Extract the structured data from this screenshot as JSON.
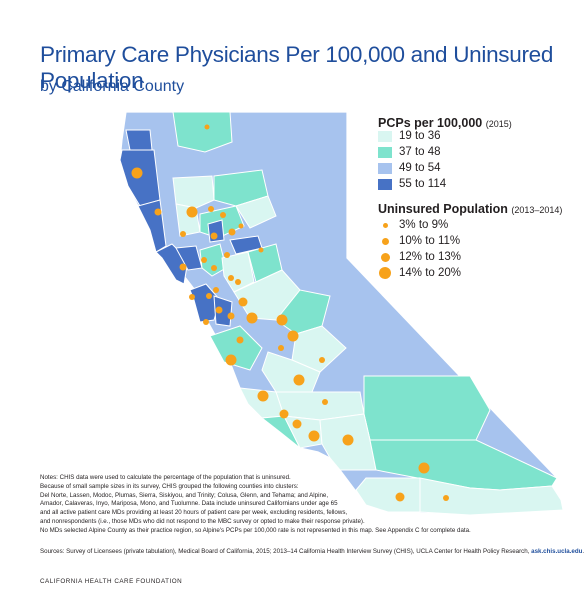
{
  "title": "Primary Care Physicians Per 100,000 and Uninsured Population",
  "subtitle": "by California County",
  "colors": {
    "level1": "#d9f6f1",
    "level2": "#7ee3cd",
    "level3": "#a7c3ee",
    "level4": "#4772c5",
    "dot": "#f7a21b",
    "title": "#1f4e9c"
  },
  "legend_pcp": {
    "title": "PCPs per 100,000",
    "year": "(2015)",
    "items": [
      {
        "label": "19 to 36",
        "color": "#d9f6f1"
      },
      {
        "label": "37 to 48",
        "color": "#7ee3cd"
      },
      {
        "label": "49 to 54",
        "color": "#a7c3ee"
      },
      {
        "label": "55 to 114",
        "color": "#4772c5"
      }
    ]
  },
  "legend_uninsured": {
    "title": "Uninsured Population",
    "year": "(2013–2014)",
    "items": [
      {
        "label": "3% to 9%"
      },
      {
        "label": "10% to 11%"
      },
      {
        "label": "12% to 13%"
      },
      {
        "label": "14% to 20%"
      }
    ]
  },
  "notes": [
    "Notes: CHIS data were used to calculate the percentage of the population that is uninsured.",
    "Because of small sample sizes in its survey, CHIS grouped the following counties into clusters:",
    "Del Norte, Lassen, Modoc, Plumas, Sierra, Siskiyou, and Trinity; Colusa, Glenn, and Tehama; and Alpine,",
    "Amador, Calaveras, Inyo, Mariposa, Mono, and Tuolumne. Data include uninsured Californians under age 65",
    "and all active patient care MDs providing at least 20 hours of patient care per week, excluding residents, fellows,",
    "and nonrespondents (i.e., those MDs who did not respond to the MBC survey or opted to make their response private).",
    "No MDs selected Alpine County as their practice region, so Alpine's PCPs per 100,000 rate is not represented in this map. See Appendix C for complete data."
  ],
  "sources": "Sources: Survey of Licensees (private tabulation), Medical Board of California, 2015; 2013–14 California Health Interview Survey (CHIS), UCLA Center for Health Policy Research,",
  "sources_link": "ask.chis.ucla.edu",
  "sources_end": ".",
  "footer": "CALIFORNIA HEALTH CARE FOUNDATION"
}
